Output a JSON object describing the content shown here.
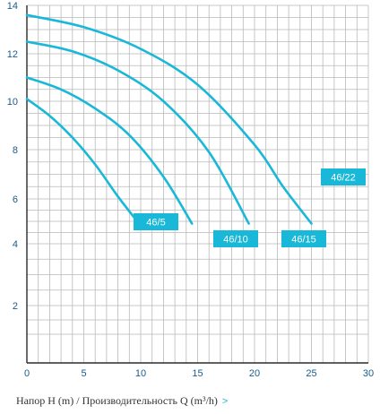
{
  "chart_data": {
    "type": "line",
    "xlim": [
      0,
      30
    ],
    "ylim": [
      0,
      14
    ],
    "y_scale": "pseudo-logarithmic (2–14)",
    "x_ticks": [
      0,
      5,
      10,
      15,
      20,
      25,
      30
    ],
    "y_ticks": [
      2,
      4,
      6,
      8,
      10,
      12,
      14
    ],
    "line_color": "#19b8d8",
    "label_bg": "#19b8d8",
    "grid": true,
    "series": [
      {
        "name": "46/5",
        "x": [
          0,
          2,
          4,
          6,
          8,
          10
        ],
        "y": [
          10.1,
          9.4,
          8.5,
          7.4,
          6.1,
          4.8
        ]
      },
      {
        "name": "46/10",
        "x": [
          0,
          3,
          6,
          9,
          12,
          14.5
        ],
        "y": [
          11.0,
          10.5,
          9.7,
          8.6,
          6.9,
          4.9
        ]
      },
      {
        "name": "46/15",
        "x": [
          0,
          4,
          8,
          12,
          16,
          19.5
        ],
        "y": [
          12.5,
          12.1,
          11.3,
          10.0,
          7.9,
          4.9
        ]
      },
      {
        "name": "46/22",
        "x": [
          0,
          5,
          10,
          15,
          20,
          22.5,
          25
        ],
        "y": [
          13.6,
          13.1,
          12.2,
          10.7,
          8.2,
          6.5,
          4.9
        ]
      }
    ]
  },
  "caption": {
    "text": "Напор H (m) / Производительность Q (m³/h)",
    "chevron": ">"
  }
}
